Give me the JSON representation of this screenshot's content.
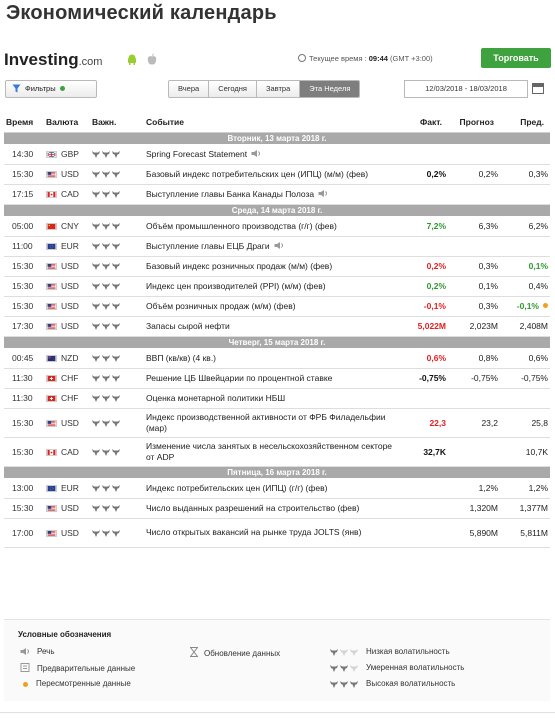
{
  "page": {
    "title": "Экономический календарь"
  },
  "topbar": {
    "logo_text": "Investing",
    "logo_suffix": ".com",
    "time_label": "Текущее время :",
    "time_value": "09:44",
    "timezone": "(GMT +3:00)",
    "trade_button": "Торговать"
  },
  "filterbar": {
    "filter_label": "Фильтры",
    "periods": [
      "Вчера",
      "Сегодня",
      "Завтра",
      "Эта Неделя"
    ],
    "active_period": "Эта Неделя",
    "date_range": "12/03/2018 - 18/03/2018"
  },
  "table": {
    "headers": {
      "time": "Время",
      "currency": "Валюта",
      "importance": "Важн.",
      "event": "Событие",
      "actual": "Факт.",
      "forecast": "Прогноз",
      "previous": "Пред."
    },
    "days": [
      {
        "label": "Вторник, 13 марта 2018 г.",
        "events": [
          {
            "time": "14:30",
            "flag": "gb",
            "currency": "GBP",
            "bulls": 3,
            "event": "Spring Forecast Statement",
            "speech": true,
            "actual": "",
            "actual_color": "",
            "forecast": "",
            "previous": ""
          },
          {
            "time": "15:30",
            "flag": "us",
            "currency": "USD",
            "bulls": 3,
            "event": "Базовый индекс потребительских цен (ИПЦ) (м/м) (фев)",
            "actual": "0,2%",
            "actual_color": "black",
            "forecast": "0,2%",
            "previous": "0,3%"
          },
          {
            "time": "17:15",
            "flag": "ca",
            "currency": "CAD",
            "bulls": 3,
            "event": "Выступление главы Банка Канады Полоза",
            "speech": true,
            "actual": "",
            "actual_color": "",
            "forecast": "",
            "previous": ""
          }
        ]
      },
      {
        "label": "Среда, 14 марта 2018 г.",
        "events": [
          {
            "time": "05:00",
            "flag": "cn",
            "currency": "CNY",
            "bulls": 3,
            "event": "Объём промышленного производства (г/г) (фев)",
            "actual": "7,2%",
            "actual_color": "green",
            "forecast": "6,3%",
            "previous": "6,2%"
          },
          {
            "time": "11:00",
            "flag": "eu",
            "currency": "EUR",
            "bulls": 3,
            "event": "Выступление главы ЕЦБ Драги",
            "speech": true,
            "actual": "",
            "actual_color": "",
            "forecast": "",
            "previous": ""
          },
          {
            "time": "15:30",
            "flag": "us",
            "currency": "USD",
            "bulls": 3,
            "event": "Базовый индекс розничных продаж (м/м) (фев)",
            "actual": "0,2%",
            "actual_color": "red",
            "forecast": "0,3%",
            "previous": "0,1%",
            "previous_color": "green"
          },
          {
            "time": "15:30",
            "flag": "us",
            "currency": "USD",
            "bulls": 3,
            "event": "Индекс цен производителей (PPI) (м/м) (фев)",
            "actual": "0,2%",
            "actual_color": "green",
            "forecast": "0,1%",
            "previous": "0,4%"
          },
          {
            "time": "15:30",
            "flag": "us",
            "currency": "USD",
            "bulls": 3,
            "event": "Объём розничных продаж (м/м) (фев)",
            "actual": "-0,1%",
            "actual_color": "red",
            "forecast": "0,3%",
            "previous": "-0,1%",
            "previous_color": "green",
            "revised": true
          },
          {
            "time": "17:30",
            "flag": "us",
            "currency": "USD",
            "bulls": 3,
            "event": "Запасы сырой нефти",
            "actual": "5,022M",
            "actual_color": "red",
            "forecast": "2,023M",
            "previous": "2,408M"
          }
        ]
      },
      {
        "label": "Четверг, 15 марта 2018 г.",
        "events": [
          {
            "time": "00:45",
            "flag": "nz",
            "currency": "NZD",
            "bulls": 3,
            "event": "ВВП (кв/кв) (4 кв.)",
            "actual": "0,6%",
            "actual_color": "red",
            "forecast": "0,8%",
            "previous": "0,6%"
          },
          {
            "time": "11:30",
            "flag": "ch",
            "currency": "CHF",
            "bulls": 3,
            "event": "Решение ЦБ Швейцарии по процентной ставке",
            "actual": "-0,75%",
            "actual_color": "black",
            "forecast": "-0,75%",
            "previous": "-0,75%"
          },
          {
            "time": "11:30",
            "flag": "ch",
            "currency": "CHF",
            "bulls": 3,
            "event": "Оценка монетарной политики НБШ",
            "actual": "",
            "actual_color": "",
            "forecast": "",
            "previous": ""
          },
          {
            "time": "15:30",
            "flag": "us",
            "currency": "USD",
            "bulls": 3,
            "event": "Индекс производственной активности от ФРБ Филадельфии (мар)",
            "actual": "22,3",
            "actual_color": "red",
            "forecast": "23,2",
            "previous": "25,8",
            "tall": true
          },
          {
            "time": "15:30",
            "flag": "ca",
            "currency": "CAD",
            "bulls": 3,
            "event": "Изменение числа занятых в несельскохозяйственном секторе от ADP",
            "actual": "32,7K",
            "actual_color": "black",
            "forecast": "",
            "previous": "10,7K",
            "tall": true
          }
        ]
      },
      {
        "label": "Пятница, 16 марта 2018 г.",
        "events": [
          {
            "time": "13:00",
            "flag": "eu",
            "currency": "EUR",
            "bulls": 3,
            "event": "Индекс потребительских цен (ИПЦ) (г/г) (фев)",
            "actual": "",
            "actual_color": "",
            "forecast": "1,2%",
            "previous": "1,2%"
          },
          {
            "time": "15:30",
            "flag": "us",
            "currency": "USD",
            "bulls": 3,
            "event": "Число выданных разрешений на строительство (фев)",
            "actual": "",
            "actual_color": "",
            "forecast": "1,320M",
            "previous": "1,377M"
          },
          {
            "time": "17:00",
            "flag": "us",
            "currency": "USD",
            "bulls": 3,
            "event": "Число открытых вакансий на рынке труда JOLTS (янв)",
            "actual": "",
            "actual_color": "",
            "forecast": "5,890M",
            "previous": "5,811M",
            "tall": true
          }
        ]
      }
    ]
  },
  "legend": {
    "title": "Условные обозначения",
    "speech": "Речь",
    "preliminary": "Предварительные данные",
    "revised": "Пересмотренные данные",
    "update": "Обновление данных",
    "low": "Низкая волатильность",
    "moderate": "Умеренная волатильность",
    "high": "Высокая волатильность"
  },
  "colors": {
    "green": "#2e9a2e",
    "red": "#e02020",
    "trade": "#3ea33e",
    "day_header": "#a9a9a9"
  }
}
